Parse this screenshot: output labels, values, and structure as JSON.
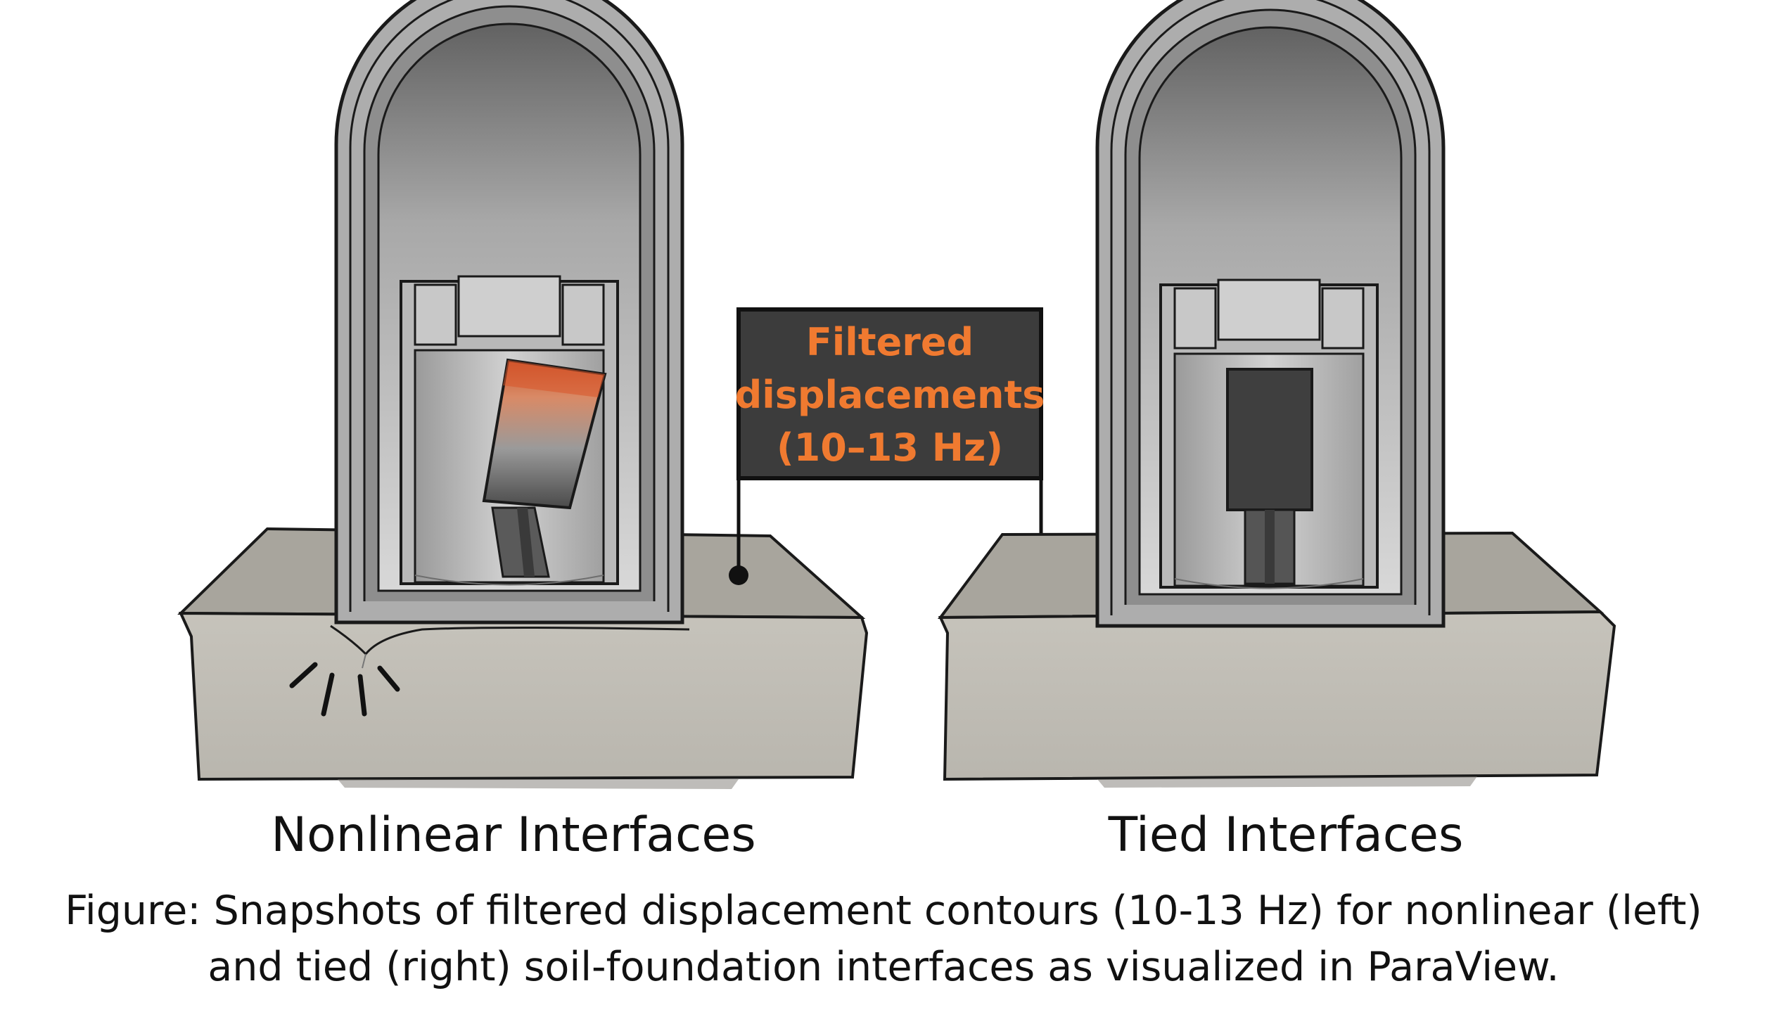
{
  "sign": {
    "line1": "Filtered",
    "line2": "displacements",
    "line3": "(10–13 Hz)"
  },
  "labels": {
    "left": "Nonlinear Interfaces",
    "right": "Tied Interfaces"
  },
  "caption": {
    "line1": "Figure: Snapshots of filtered displacement contours (10-13 Hz) for nonlinear (left)",
    "line2": "and tied (right) soil-foundation interfaces as visualized in ParaView."
  },
  "colors": {
    "soil_top": "#a7a49c",
    "soil_front": "#c1beb6",
    "structure_wall": "#b2b2b2",
    "sign_background": "#3c3c3c",
    "sign_text": "#f07a30",
    "hot_contour": "#d9562a"
  }
}
